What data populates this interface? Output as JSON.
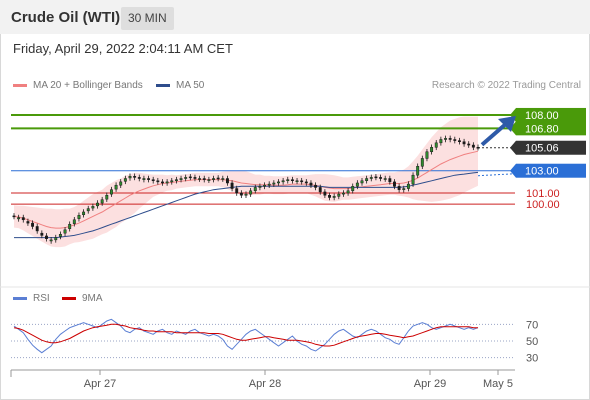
{
  "header": {
    "title": "Crude Oil (WTI)",
    "interval": "30 MIN"
  },
  "datetime": "Friday, April 29, 2022 2:04:11 AM CET",
  "legend": {
    "ma20_label": "MA 20 + Bollinger Bands",
    "ma20_color": "#f08080",
    "ma50_label": "MA 50",
    "ma50_color": "#2e4d8c"
  },
  "credit": "Research © 2022 Trading Central",
  "rsi_legend": {
    "rsi_label": "RSI",
    "rsi_color": "#5b7fd4",
    "ma9_label": "9MA",
    "ma9_color": "#cc0000"
  },
  "chart_data": {
    "type": "candlestick",
    "price_range": [
      93.2,
      109.7
    ],
    "levels": [
      {
        "value": 108.0,
        "label": "108.00",
        "style": "target",
        "color": "#4a9a0a"
      },
      {
        "value": 106.8,
        "label": "106.80",
        "style": "target",
        "color": "#4a9a0a"
      },
      {
        "value": 105.06,
        "label": "105.06",
        "style": "last-price",
        "color": "#333333"
      },
      {
        "value": 103.0,
        "label": "103.00",
        "style": "pivot",
        "color": "#2b6fd6"
      },
      {
        "value": 101.0,
        "label": "101.00",
        "style": "support",
        "color": "#cc2222"
      },
      {
        "value": 100.0,
        "label": "100.00",
        "style": "support",
        "color": "#cc2222"
      }
    ],
    "x_ticks": [
      "Apr 27",
      "Apr 28",
      "Apr 29",
      "May 5"
    ],
    "closes": [
      98.9,
      98.8,
      98.6,
      98.3,
      98.0,
      97.6,
      97.2,
      96.9,
      96.8,
      97.0,
      97.3,
      97.7,
      98.2,
      98.6,
      99.0,
      99.3,
      99.6,
      99.8,
      100.1,
      100.4,
      100.8,
      101.3,
      101.7,
      102.0,
      102.3,
      102.5,
      102.4,
      102.3,
      102.3,
      102.2,
      102.1,
      102.0,
      101.9,
      102.0,
      102.1,
      102.2,
      102.3,
      102.4,
      102.4,
      102.3,
      102.3,
      102.2,
      102.2,
      102.3,
      102.3,
      102.3,
      101.9,
      101.4,
      101.0,
      100.8,
      100.9,
      101.2,
      101.5,
      101.6,
      101.7,
      101.8,
      101.9,
      102.0,
      102.1,
      102.2,
      102.1,
      102.1,
      102.0,
      101.9,
      101.7,
      101.5,
      101.1,
      100.8,
      100.6,
      100.7,
      100.9,
      101.0,
      101.2,
      101.6,
      101.9,
      102.1,
      102.3,
      102.4,
      102.4,
      102.3,
      102.3,
      102.0,
      101.6,
      101.3,
      101.4,
      101.8,
      102.6,
      103.4,
      104.1,
      104.7,
      105.1,
      105.5,
      105.8,
      105.9,
      105.8,
      105.7,
      105.6,
      105.4,
      105.3,
      105.1,
      105.06
    ],
    "opens_offset": [
      0.05,
      -0.12,
      0.2,
      0.15,
      0.3,
      0.4,
      0.2,
      0.25,
      -0.1,
      -0.2,
      -0.2,
      -0.3,
      -0.4,
      -0.35,
      -0.3,
      -0.25,
      -0.2,
      -0.15,
      -0.25,
      -0.3,
      -0.35,
      -0.4,
      -0.35,
      -0.3,
      -0.25,
      -0.15,
      0.1,
      0.1,
      -0.1,
      0.1,
      0.1,
      0.1,
      0.1,
      -0.1,
      -0.1,
      -0.1,
      -0.1,
      -0.1,
      0.05,
      0.1,
      -0.05,
      0.1,
      -0.05,
      -0.1,
      0.05,
      -0.05,
      0.4,
      0.5,
      0.4,
      0.2,
      -0.1,
      -0.3,
      -0.3,
      -0.1,
      -0.1,
      -0.1,
      -0.1,
      -0.1,
      -0.1,
      -0.1,
      0.1,
      -0.05,
      0.1,
      0.1,
      0.2,
      0.2,
      0.4,
      0.3,
      0.2,
      -0.1,
      -0.2,
      -0.1,
      -0.2,
      -0.4,
      -0.3,
      -0.2,
      -0.2,
      -0.1,
      0.05,
      0.1,
      -0.05,
      0.3,
      0.4,
      0.3,
      -0.1,
      -0.4,
      -0.8,
      -0.8,
      -0.7,
      -0.6,
      -0.4,
      -0.4,
      -0.3,
      -0.1,
      0.1,
      0.1,
      0.1,
      0.2,
      0.1,
      0.2,
      0.04
    ],
    "ma20": [
      98.9,
      98.85,
      98.75,
      98.6,
      98.45,
      98.3,
      98.15,
      98.0,
      97.9,
      97.85,
      97.85,
      97.9,
      98.0,
      98.15,
      98.3,
      98.5,
      98.7,
      98.9,
      99.1,
      99.3,
      99.55,
      99.8,
      100.05,
      100.3,
      100.55,
      100.8,
      101.0,
      101.2,
      101.35,
      101.5,
      101.65,
      101.75,
      101.85,
      101.9,
      101.95,
      102.0,
      102.05,
      102.1,
      102.15,
      102.2,
      102.2,
      102.2,
      102.2,
      102.2,
      102.2,
      102.2,
      102.15,
      102.1,
      102.0,
      101.9,
      101.85,
      101.8,
      101.75,
      101.75,
      101.75,
      101.75,
      101.7,
      101.7,
      101.7,
      101.75,
      101.8,
      101.8,
      101.8,
      101.8,
      101.75,
      101.7,
      101.6,
      101.5,
      101.45,
      101.4,
      101.4,
      101.4,
      101.4,
      101.45,
      101.5,
      101.55,
      101.6,
      101.65,
      101.7,
      101.75,
      101.8,
      101.85,
      101.85,
      101.85,
      101.9,
      102.0,
      102.15,
      102.35,
      102.6,
      102.85,
      103.1,
      103.35,
      103.6,
      103.8,
      104.0,
      104.15,
      104.3,
      104.45,
      104.55,
      104.65,
      104.75
    ],
    "band_width": [
      1.0,
      1.0,
      1.1,
      1.2,
      1.3,
      1.4,
      1.5,
      1.6,
      1.7,
      1.7,
      1.7,
      1.7,
      1.6,
      1.6,
      1.7,
      1.8,
      1.9,
      2.0,
      2.0,
      2.0,
      2.1,
      2.1,
      2.1,
      2.0,
      2.0,
      1.9,
      1.8,
      1.6,
      1.4,
      1.2,
      1.0,
      0.9,
      0.8,
      0.7,
      0.7,
      0.6,
      0.6,
      0.6,
      0.6,
      0.6,
      0.6,
      0.6,
      0.6,
      0.6,
      0.6,
      0.7,
      0.8,
      0.9,
      1.0,
      1.1,
      1.1,
      1.0,
      0.9,
      0.9,
      0.8,
      0.8,
      0.8,
      0.8,
      0.8,
      0.8,
      0.8,
      0.8,
      0.8,
      0.8,
      0.9,
      1.0,
      1.1,
      1.2,
      1.2,
      1.2,
      1.1,
      1.0,
      1.0,
      1.0,
      1.0,
      1.0,
      1.0,
      1.0,
      1.0,
      1.0,
      1.0,
      1.0,
      1.0,
      1.1,
      1.2,
      1.4,
      1.7,
      2.0,
      2.3,
      2.6,
      2.9,
      3.1,
      3.3,
      3.4,
      3.5,
      3.5,
      3.5,
      3.4,
      3.3,
      3.2,
      3.1
    ],
    "ma50": [
      97.0,
      97.0,
      97.0,
      97.0,
      97.0,
      97.0,
      97.0,
      97.0,
      97.0,
      97.0,
      97.05,
      97.1,
      97.15,
      97.2,
      97.3,
      97.4,
      97.5,
      97.6,
      97.75,
      97.9,
      98.05,
      98.2,
      98.35,
      98.5,
      98.65,
      98.8,
      98.95,
      99.1,
      99.25,
      99.4,
      99.55,
      99.7,
      99.85,
      100.0,
      100.15,
      100.3,
      100.45,
      100.6,
      100.75,
      100.9,
      101.0,
      101.1,
      101.2,
      101.3,
      101.35,
      101.4,
      101.45,
      101.5,
      101.55,
      101.6,
      101.6,
      101.6,
      101.6,
      101.6,
      101.6,
      101.6,
      101.6,
      101.6,
      101.6,
      101.6,
      101.6,
      101.6,
      101.6,
      101.6,
      101.6,
      101.6,
      101.6,
      101.55,
      101.5,
      101.5,
      101.5,
      101.5,
      101.5,
      101.5,
      101.5,
      101.5,
      101.5,
      101.5,
      101.5,
      101.5,
      101.5,
      101.5,
      101.5,
      101.5,
      101.55,
      101.6,
      101.7,
      101.8,
      101.9,
      102.0,
      102.1,
      102.2,
      102.3,
      102.4,
      102.5,
      102.6,
      102.65,
      102.7,
      102.75,
      102.8,
      102.85
    ],
    "rsi_range": [
      20,
      80
    ],
    "rsi_levels": [
      70,
      50,
      30
    ],
    "rsi": [
      68,
      64,
      60,
      52,
      45,
      40,
      36,
      40,
      44,
      52,
      58,
      62,
      66,
      68,
      70,
      72,
      70,
      68,
      66,
      70,
      74,
      76,
      72,
      68,
      62,
      60,
      64,
      66,
      62,
      60,
      58,
      62,
      64,
      60,
      58,
      62,
      60,
      58,
      62,
      64,
      60,
      58,
      56,
      58,
      56,
      52,
      44,
      40,
      46,
      52,
      58,
      62,
      64,
      60,
      56,
      52,
      48,
      44,
      48,
      52,
      56,
      50,
      46,
      44,
      40,
      38,
      42,
      46,
      52,
      58,
      62,
      64,
      60,
      56,
      54,
      58,
      62,
      64,
      62,
      58,
      54,
      52,
      48,
      46,
      54,
      62,
      68,
      70,
      72,
      70,
      66,
      64,
      66,
      68,
      70,
      68,
      66,
      64,
      66,
      64,
      66
    ],
    "rsi_ma9": [
      66,
      65,
      63,
      60,
      57,
      54,
      51,
      49,
      48,
      48,
      49,
      51,
      53,
      56,
      59,
      62,
      64,
      66,
      67,
      68,
      69,
      70,
      70,
      69,
      68,
      66,
      65,
      64,
      63,
      62,
      62,
      61,
      61,
      61,
      61,
      60,
      60,
      60,
      60,
      60,
      60,
      60,
      59,
      59,
      59,
      58,
      56,
      54,
      52,
      51,
      51,
      52,
      53,
      54,
      55,
      55,
      54,
      53,
      52,
      51,
      51,
      51,
      50,
      49,
      48,
      46,
      45,
      44,
      44,
      45,
      47,
      49,
      51,
      53,
      55,
      56,
      57,
      58,
      59,
      59,
      58,
      57,
      56,
      55,
      54,
      55,
      56,
      58,
      60,
      62,
      64,
      66,
      67,
      67,
      67,
      67,
      67,
      67,
      67,
      66,
      66
    ]
  }
}
